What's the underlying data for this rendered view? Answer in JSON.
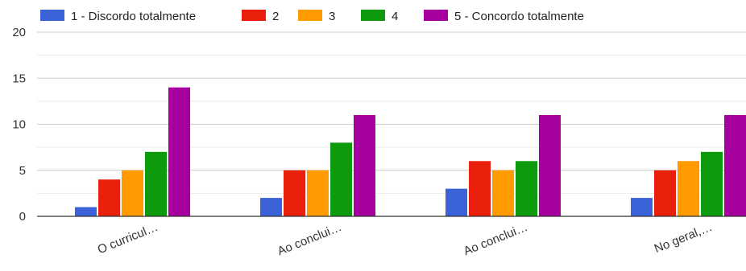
{
  "chart_data": {
    "type": "bar",
    "categories": [
      "O curricul…",
      "Ao conclui…",
      "Ao conclui…",
      "No geral,…"
    ],
    "series": [
      {
        "name": "1 - Discordo totalmente",
        "color": "#3b62d6",
        "values": [
          1,
          2,
          3,
          2
        ]
      },
      {
        "name": "2",
        "color": "#e8200c",
        "values": [
          4,
          5,
          6,
          5
        ]
      },
      {
        "name": "3",
        "color": "#ff9b00",
        "values": [
          5,
          5,
          5,
          6
        ]
      },
      {
        "name": "4",
        "color": "#0d9a0d",
        "values": [
          7,
          8,
          6,
          7
        ]
      },
      {
        "name": "5 - Concordo totalmente",
        "color": "#a6009e",
        "values": [
          14,
          11,
          11,
          11
        ]
      }
    ],
    "ylim": [
      0,
      20
    ],
    "yticks": [
      0,
      5,
      10,
      15,
      20
    ],
    "grid": true,
    "legend_position": "top"
  }
}
